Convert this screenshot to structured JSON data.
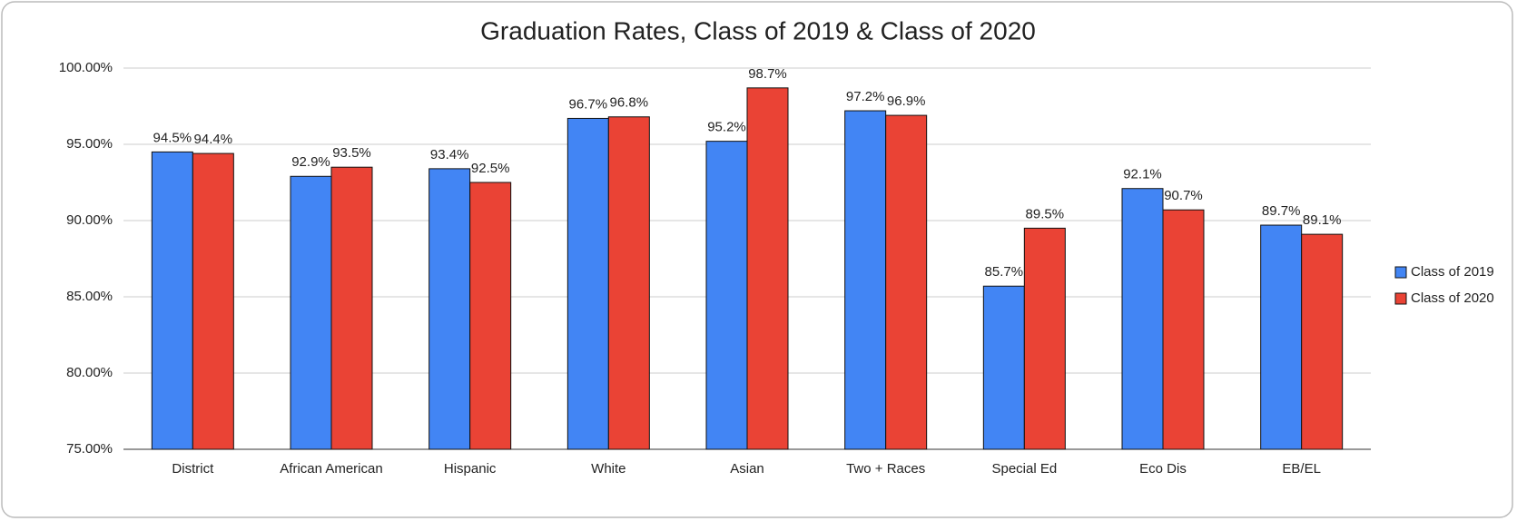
{
  "chart_data": {
    "type": "bar",
    "title": "Graduation Rates, Class of 2019 & Class of 2020",
    "categories": [
      "District",
      "African American",
      "Hispanic",
      "White",
      "Asian",
      "Two + Races",
      "Special Ed",
      "Eco Dis",
      "EB/EL"
    ],
    "series": [
      {
        "name": "Class of 2019",
        "color": "#4285f4",
        "values": [
          94.5,
          92.9,
          93.4,
          96.7,
          95.2,
          97.2,
          85.7,
          92.1,
          89.7
        ],
        "value_labels": [
          "94.5%",
          "92.9%",
          "93.4%",
          "96.7%",
          "95.2%",
          "97.2%",
          "85.7%",
          "92.1%",
          "89.7%"
        ]
      },
      {
        "name": "Class of 2020",
        "color": "#ea4335",
        "values": [
          94.4,
          93.5,
          92.5,
          96.8,
          98.7,
          96.9,
          89.5,
          90.7,
          89.1
        ],
        "value_labels": [
          "94.4%",
          "93.5%",
          "92.5%",
          "96.8%",
          "98.7%",
          "96.9%",
          "89.5%",
          "90.7%",
          "89.1%"
        ]
      }
    ],
    "ylim": [
      75,
      100
    ],
    "yticks": [
      {
        "value": 75,
        "label": "75.00%"
      },
      {
        "value": 80,
        "label": "80.00%"
      },
      {
        "value": 85,
        "label": "85.00%"
      },
      {
        "value": 90,
        "label": "90.00%"
      },
      {
        "value": 95,
        "label": "95.00%"
      },
      {
        "value": 100,
        "label": "100.00%"
      }
    ],
    "grid": true,
    "legend": "right"
  }
}
